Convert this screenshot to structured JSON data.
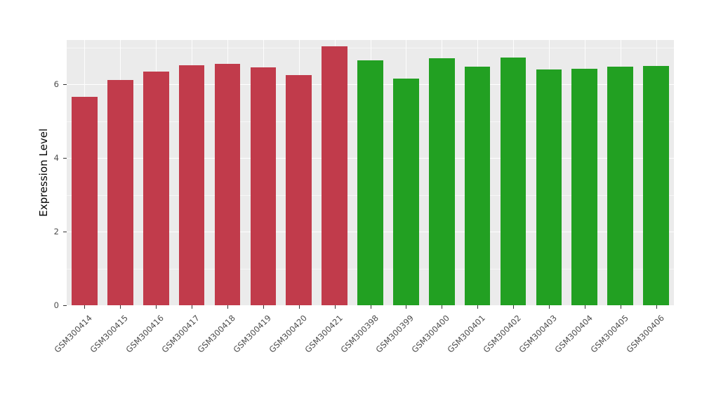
{
  "chart_data": {
    "type": "bar",
    "title": "",
    "xlabel": "",
    "ylabel": "Expression Level",
    "ylim": [
      0,
      7.2
    ],
    "yticks": [
      0,
      2,
      4,
      6
    ],
    "yminor": [
      1,
      3,
      5,
      7
    ],
    "grid": "on",
    "legend_position": "none",
    "panel_background": "#EBEBEB",
    "gridline_color": "#FFFFFF",
    "categories": [
      "GSM300414",
      "GSM300415",
      "GSM300416",
      "GSM300417",
      "GSM300418",
      "GSM300419",
      "GSM300420",
      "GSM300421",
      "GSM300398",
      "GSM300399",
      "GSM300400",
      "GSM300401",
      "GSM300402",
      "GSM300403",
      "GSM300404",
      "GSM300405",
      "GSM300406"
    ],
    "values": [
      5.65,
      6.12,
      6.35,
      6.52,
      6.55,
      6.45,
      6.25,
      7.02,
      6.65,
      6.15,
      6.7,
      6.47,
      6.73,
      6.4,
      6.42,
      6.47,
      6.5
    ],
    "groups": [
      "red",
      "red",
      "red",
      "red",
      "red",
      "red",
      "red",
      "red",
      "green",
      "green",
      "green",
      "green",
      "green",
      "green",
      "green",
      "green",
      "green"
    ],
    "group_colors": {
      "red": "#C13B4B",
      "green": "#22A022"
    }
  }
}
